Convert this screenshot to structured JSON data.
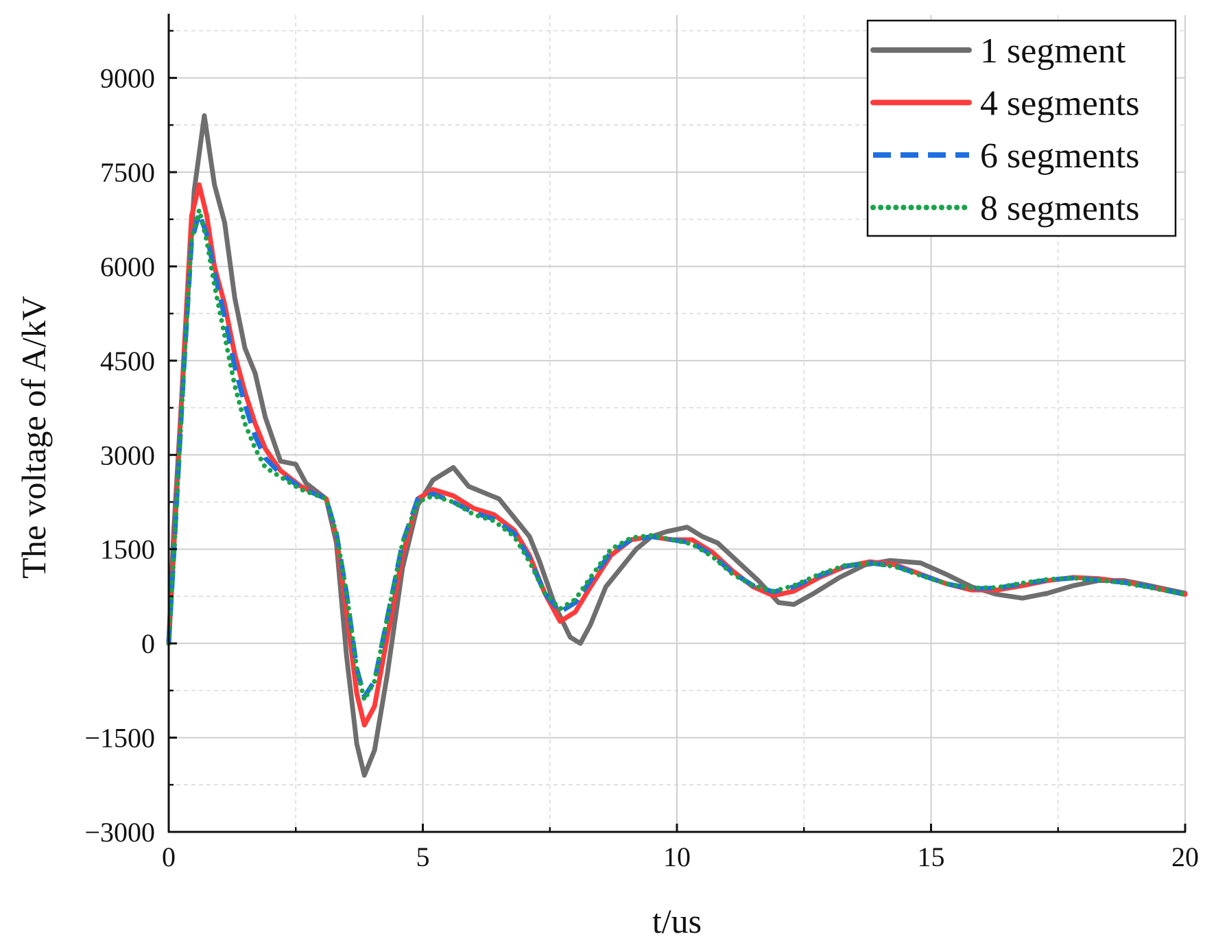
{
  "chart_data": {
    "type": "line",
    "xlabel": "t/us",
    "ylabel": "The voltage of A/kV",
    "xlim": [
      0,
      20
    ],
    "ylim": [
      -3000,
      10000
    ],
    "x_ticks": [
      0,
      5,
      10,
      15,
      20
    ],
    "y_ticks": [
      -3000,
      -1500,
      0,
      1500,
      3000,
      4500,
      6000,
      7500,
      9000
    ],
    "x_minor_step": 2.5,
    "y_minor_step": 750,
    "grid": true,
    "legend_position": "top-right",
    "series": [
      {
        "name": "1 segment",
        "color": "#6e6e6e",
        "style": "solid",
        "points": [
          [
            0,
            0
          ],
          [
            0.1,
            1800
          ],
          [
            0.3,
            4500
          ],
          [
            0.5,
            7200
          ],
          [
            0.7,
            8400
          ],
          [
            0.9,
            7300
          ],
          [
            1.1,
            6700
          ],
          [
            1.3,
            5500
          ],
          [
            1.5,
            4700
          ],
          [
            1.7,
            4300
          ],
          [
            1.9,
            3600
          ],
          [
            2.2,
            2900
          ],
          [
            2.5,
            2850
          ],
          [
            2.7,
            2550
          ],
          [
            3.1,
            2300
          ],
          [
            3.3,
            1600
          ],
          [
            3.5,
            -200
          ],
          [
            3.7,
            -1600
          ],
          [
            3.85,
            -2100
          ],
          [
            4.05,
            -1700
          ],
          [
            4.3,
            -500
          ],
          [
            4.6,
            1200
          ],
          [
            4.9,
            2200
          ],
          [
            5.2,
            2600
          ],
          [
            5.6,
            2800
          ],
          [
            5.9,
            2500
          ],
          [
            6.2,
            2400
          ],
          [
            6.5,
            2300
          ],
          [
            6.8,
            2000
          ],
          [
            7.1,
            1700
          ],
          [
            7.3,
            1300
          ],
          [
            7.6,
            600
          ],
          [
            7.9,
            100
          ],
          [
            8.1,
            0
          ],
          [
            8.3,
            300
          ],
          [
            8.6,
            900
          ],
          [
            8.9,
            1200
          ],
          [
            9.2,
            1500
          ],
          [
            9.5,
            1700
          ],
          [
            9.8,
            1780
          ],
          [
            10.2,
            1850
          ],
          [
            10.5,
            1700
          ],
          [
            10.8,
            1600
          ],
          [
            11.2,
            1300
          ],
          [
            11.6,
            1000
          ],
          [
            12,
            650
          ],
          [
            12.3,
            620
          ],
          [
            12.7,
            800
          ],
          [
            13.2,
            1050
          ],
          [
            13.7,
            1250
          ],
          [
            14.2,
            1320
          ],
          [
            14.8,
            1280
          ],
          [
            15.3,
            1100
          ],
          [
            15.8,
            900
          ],
          [
            16.3,
            780
          ],
          [
            16.8,
            720
          ],
          [
            17.3,
            800
          ],
          [
            17.8,
            920
          ],
          [
            18.3,
            1000
          ],
          [
            18.8,
            1000
          ],
          [
            19.3,
            920
          ],
          [
            19.7,
            850
          ],
          [
            20,
            800
          ]
        ]
      },
      {
        "name": "4 segments",
        "color": "#ff3b3b",
        "style": "solid",
        "points": [
          [
            0,
            0
          ],
          [
            0.1,
            1500
          ],
          [
            0.3,
            4600
          ],
          [
            0.45,
            6800
          ],
          [
            0.6,
            7300
          ],
          [
            0.75,
            6800
          ],
          [
            0.9,
            6000
          ],
          [
            1.1,
            5400
          ],
          [
            1.3,
            4600
          ],
          [
            1.5,
            4000
          ],
          [
            1.7,
            3500
          ],
          [
            1.9,
            3100
          ],
          [
            2.2,
            2750
          ],
          [
            2.6,
            2500
          ],
          [
            3.1,
            2300
          ],
          [
            3.3,
            1700
          ],
          [
            3.5,
            500
          ],
          [
            3.7,
            -800
          ],
          [
            3.85,
            -1300
          ],
          [
            4.05,
            -1000
          ],
          [
            4.3,
            100
          ],
          [
            4.6,
            1400
          ],
          [
            4.9,
            2300
          ],
          [
            5.2,
            2450
          ],
          [
            5.6,
            2350
          ],
          [
            6,
            2150
          ],
          [
            6.4,
            2050
          ],
          [
            6.8,
            1800
          ],
          [
            7.1,
            1400
          ],
          [
            7.4,
            800
          ],
          [
            7.7,
            350
          ],
          [
            8,
            500
          ],
          [
            8.3,
            900
          ],
          [
            8.7,
            1400
          ],
          [
            9.1,
            1650
          ],
          [
            9.5,
            1700
          ],
          [
            9.9,
            1650
          ],
          [
            10.3,
            1650
          ],
          [
            10.7,
            1450
          ],
          [
            11.1,
            1150
          ],
          [
            11.5,
            900
          ],
          [
            11.9,
            760
          ],
          [
            12.3,
            830
          ],
          [
            12.8,
            1050
          ],
          [
            13.3,
            1220
          ],
          [
            13.8,
            1300
          ],
          [
            14.3,
            1250
          ],
          [
            14.8,
            1100
          ],
          [
            15.3,
            950
          ],
          [
            15.8,
            850
          ],
          [
            16.3,
            850
          ],
          [
            16.8,
            920
          ],
          [
            17.3,
            1000
          ],
          [
            17.8,
            1050
          ],
          [
            18.3,
            1030
          ],
          [
            18.8,
            980
          ],
          [
            19.3,
            900
          ],
          [
            20,
            780
          ]
        ]
      },
      {
        "name": "6 segments",
        "color": "#1f6fe0",
        "style": "dashed",
        "points": [
          [
            0,
            0
          ],
          [
            0.1,
            1400
          ],
          [
            0.3,
            4400
          ],
          [
            0.45,
            6400
          ],
          [
            0.6,
            6850
          ],
          [
            0.75,
            6500
          ],
          [
            0.9,
            5900
          ],
          [
            1.1,
            5200
          ],
          [
            1.3,
            4400
          ],
          [
            1.5,
            3800
          ],
          [
            1.7,
            3300
          ],
          [
            1.9,
            2950
          ],
          [
            2.2,
            2700
          ],
          [
            2.6,
            2480
          ],
          [
            3.1,
            2300
          ],
          [
            3.3,
            1750
          ],
          [
            3.5,
            800
          ],
          [
            3.7,
            -400
          ],
          [
            3.85,
            -850
          ],
          [
            4.05,
            -600
          ],
          [
            4.3,
            400
          ],
          [
            4.6,
            1600
          ],
          [
            4.9,
            2300
          ],
          [
            5.2,
            2380
          ],
          [
            5.6,
            2250
          ],
          [
            6,
            2080
          ],
          [
            6.4,
            1980
          ],
          [
            6.8,
            1750
          ],
          [
            7.1,
            1350
          ],
          [
            7.4,
            800
          ],
          [
            7.7,
            500
          ],
          [
            8,
            650
          ],
          [
            8.3,
            1000
          ],
          [
            8.7,
            1450
          ],
          [
            9.1,
            1650
          ],
          [
            9.5,
            1700
          ],
          [
            9.9,
            1650
          ],
          [
            10.3,
            1600
          ],
          [
            10.7,
            1400
          ],
          [
            11.1,
            1120
          ],
          [
            11.5,
            920
          ],
          [
            11.9,
            820
          ],
          [
            12.3,
            900
          ],
          [
            12.8,
            1080
          ],
          [
            13.3,
            1230
          ],
          [
            13.8,
            1280
          ],
          [
            14.3,
            1230
          ],
          [
            14.8,
            1090
          ],
          [
            15.3,
            950
          ],
          [
            15.8,
            870
          ],
          [
            16.3,
            880
          ],
          [
            16.8,
            950
          ],
          [
            17.3,
            1010
          ],
          [
            17.8,
            1040
          ],
          [
            18.3,
            1010
          ],
          [
            18.8,
            970
          ],
          [
            19.3,
            900
          ],
          [
            20,
            780
          ]
        ]
      },
      {
        "name": "8 segments",
        "color": "#1aa34a",
        "style": "dotted",
        "points": [
          [
            0,
            0
          ],
          [
            0.1,
            1400
          ],
          [
            0.3,
            4400
          ],
          [
            0.45,
            6450
          ],
          [
            0.6,
            6900
          ],
          [
            0.75,
            6400
          ],
          [
            0.9,
            5700
          ],
          [
            1.1,
            4900
          ],
          [
            1.3,
            4100
          ],
          [
            1.5,
            3500
          ],
          [
            1.7,
            3100
          ],
          [
            1.9,
            2800
          ],
          [
            2.2,
            2650
          ],
          [
            2.6,
            2450
          ],
          [
            3.1,
            2300
          ],
          [
            3.3,
            1750
          ],
          [
            3.5,
            800
          ],
          [
            3.7,
            -400
          ],
          [
            3.85,
            -900
          ],
          [
            4.05,
            -600
          ],
          [
            4.3,
            400
          ],
          [
            4.6,
            1600
          ],
          [
            4.9,
            2250
          ],
          [
            5.2,
            2350
          ],
          [
            5.6,
            2250
          ],
          [
            6,
            2050
          ],
          [
            6.4,
            1950
          ],
          [
            6.8,
            1700
          ],
          [
            7.1,
            1300
          ],
          [
            7.4,
            800
          ],
          [
            7.7,
            550
          ],
          [
            8,
            700
          ],
          [
            8.3,
            1050
          ],
          [
            8.7,
            1500
          ],
          [
            9.1,
            1680
          ],
          [
            9.5,
            1720
          ],
          [
            9.9,
            1650
          ],
          [
            10.3,
            1580
          ],
          [
            10.7,
            1380
          ],
          [
            11.1,
            1100
          ],
          [
            11.5,
            920
          ],
          [
            11.9,
            830
          ],
          [
            12.3,
            920
          ],
          [
            12.8,
            1100
          ],
          [
            13.3,
            1240
          ],
          [
            13.8,
            1280
          ],
          [
            14.3,
            1220
          ],
          [
            14.8,
            1080
          ],
          [
            15.3,
            950
          ],
          [
            15.8,
            880
          ],
          [
            16.3,
            890
          ],
          [
            16.8,
            960
          ],
          [
            17.3,
            1020
          ],
          [
            17.8,
            1040
          ],
          [
            18.3,
            1010
          ],
          [
            18.8,
            960
          ],
          [
            19.3,
            890
          ],
          [
            20,
            780
          ]
        ]
      }
    ]
  }
}
